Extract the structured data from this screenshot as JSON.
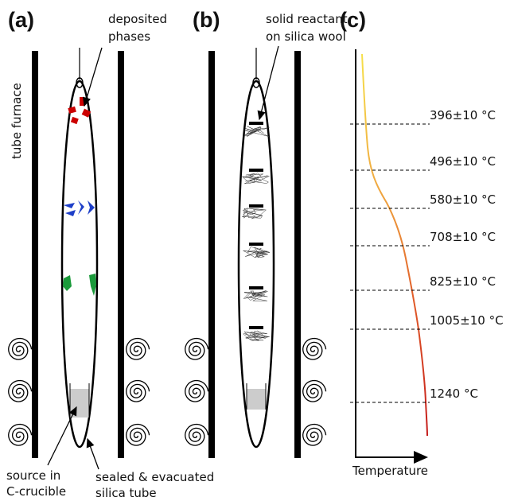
{
  "panels": {
    "a": {
      "label": "(a)",
      "deposited_label": [
        "deposited",
        "phases"
      ],
      "furnace_label": "tube furnace",
      "source_label": [
        "source in",
        "C-crucible"
      ],
      "tube_label": [
        "sealed & evacuated",
        "silica tube"
      ]
    },
    "b": {
      "label": "(b)",
      "reactant_label": [
        "solid reactant",
        "on silica wool"
      ]
    },
    "c": {
      "label": "(c)",
      "temperature_levels": [
        "396±10 °C",
        "496±10 °C",
        "580±10 °C",
        "708±10 °C",
        "825±10 °C",
        "1005±10 °C",
        "1240 °C"
      ],
      "axis_label": "Temperature"
    }
  }
}
